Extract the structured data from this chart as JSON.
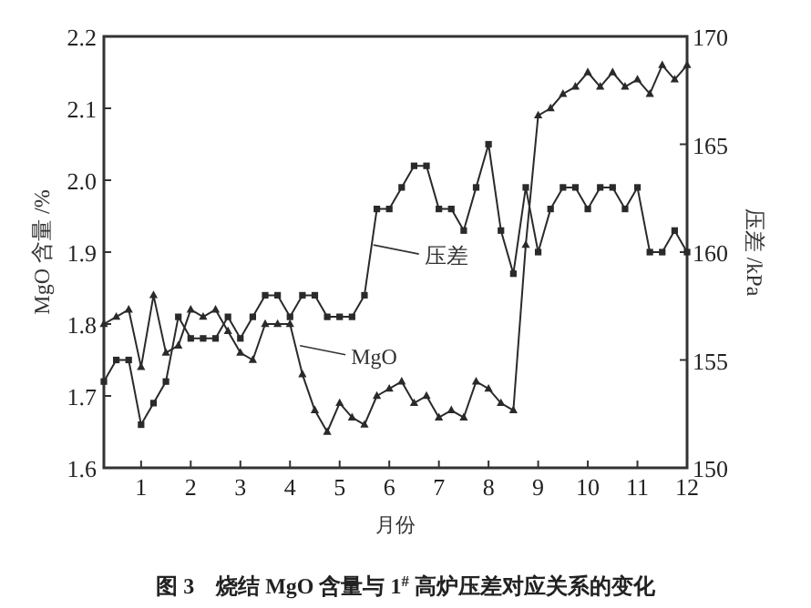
{
  "chart_data": {
    "type": "line",
    "xlabel": "月份",
    "ylabel": "MgO 含量 /%",
    "y2label": "压差 /kPa",
    "x": [
      0.25,
      0.5,
      0.75,
      1,
      1.25,
      1.5,
      1.75,
      2,
      2.25,
      2.5,
      2.75,
      3,
      3.25,
      3.5,
      3.75,
      4,
      4.25,
      4.5,
      4.75,
      5,
      5.25,
      5.5,
      5.75,
      6,
      6.25,
      6.5,
      6.75,
      7,
      7.25,
      7.5,
      7.75,
      8,
      8.25,
      8.5,
      8.75,
      9,
      9.25,
      9.5,
      9.75,
      10,
      10.25,
      10.5,
      10.75,
      11,
      11.25,
      11.5,
      11.75,
      12
    ],
    "series": [
      {
        "color": "#2a2a2a",
        "marker": "triangle",
        "values": [
          1.8,
          1.81,
          1.82,
          1.74,
          1.84,
          1.76,
          1.77,
          1.82,
          1.81,
          1.82,
          1.79,
          1.76,
          1.75,
          1.8,
          1.8,
          1.8,
          1.73,
          1.68,
          1.65,
          1.69,
          1.67,
          1.66,
          1.7,
          1.71,
          1.72,
          1.69,
          1.7,
          1.67,
          1.68,
          1.67,
          1.72,
          1.71,
          1.69,
          1.68,
          1.91,
          2.09,
          2.1,
          2.12,
          2.13,
          2.15,
          2.13,
          2.15,
          2.13,
          2.14,
          2.12,
          2.16,
          2.14,
          2.16
        ]
      },
      {
        "color": "#2a2a2a",
        "marker": "square",
        "axis": "y2",
        "values": [
          154,
          155,
          155,
          152,
          153,
          154,
          157,
          156,
          156,
          156,
          157,
          156,
          157,
          158,
          158,
          157,
          158,
          158,
          157,
          157,
          157,
          158,
          162,
          162,
          163,
          164,
          164,
          162,
          162,
          161,
          163,
          165,
          161,
          159,
          163,
          160,
          162,
          163,
          163,
          162,
          163,
          163,
          162,
          163,
          160,
          160,
          161,
          160
        ]
      }
    ],
    "xlim": [
      0.25,
      12
    ],
    "xticks": [
      1,
      2,
      3,
      4,
      5,
      6,
      7,
      8,
      9,
      10,
      11,
      12
    ],
    "ylim": [
      1.6,
      2.2
    ],
    "yticks": [
      1.6,
      1.7,
      1.8,
      1.9,
      {
        "value": 2,
        "label": "2.0"
      },
      2.1,
      2.2
    ],
    "y2lim": [
      150,
      170
    ],
    "y2ticks": [
      150,
      155,
      160,
      165,
      170
    ],
    "grid": false,
    "line_style": "solid",
    "annotations": [
      {
        "text": "MgO",
        "x": 4.2,
        "y": 1.77
      },
      {
        "text": "压差",
        "x": 5.68,
        "y": 1.91
      },
      "图 3　烧结 MgO 含量与 1$^{#}$ 高炉压差对应关系的变化"
    ]
  }
}
